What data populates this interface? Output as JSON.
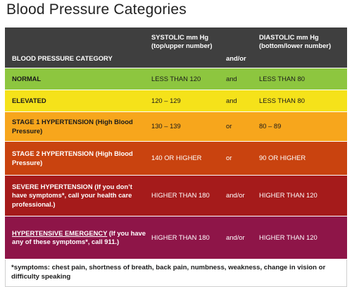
{
  "title": "Blood Pressure Categories",
  "header": {
    "category": "BLOOD PRESSURE CATEGORY",
    "systolic": "SYSTOLIC mm Hg (top/upper number)",
    "andor": "and/or",
    "diastolic": "DIASTOLIC mm Hg (bottom/lower number)"
  },
  "rows": [
    {
      "category": "NORMAL",
      "systolic": "LESS THAN 120",
      "conj": "and",
      "diastolic": "LESS THAN 80",
      "color": "#8dc63f"
    },
    {
      "category": "ELEVATED",
      "systolic": "120 – 129",
      "conj": "and",
      "diastolic": "LESS THAN 80",
      "color": "#f5e21a"
    },
    {
      "category": "STAGE 1 HYPERTENSION (High Blood Pressure)",
      "systolic": "130 – 139",
      "conj": "or",
      "diastolic": "80 – 89",
      "color": "#f7a61c"
    },
    {
      "category": "STAGE 2 HYPERTENSION (High Blood Pressure)",
      "systolic": "140 OR HIGHER",
      "conj": "or",
      "diastolic": "90 OR HIGHER",
      "color": "#c9430f"
    },
    {
      "category_link": "SEVERE HYPERTENSION",
      "category": " (If you don’t have symptoms*, call your health care professional.)",
      "systolic": "HIGHER THAN 180",
      "conj": "and/or",
      "diastolic": "HIGHER THAN 120",
      "color": "#a51b1b"
    },
    {
      "category_link": "HYPERTENSIVE EMERGENCY",
      "category": " (If you have any of these symptoms*, call 911.)",
      "systolic": "HIGHER THAN 180",
      "conj": "and/or",
      "diastolic": "HIGHER THAN 120",
      "color": "#8e1548"
    }
  ],
  "footnote": "*symptoms: chest pain, shortness of breath, back pain, numbness, weakness, change in vision or difficulty speaking"
}
